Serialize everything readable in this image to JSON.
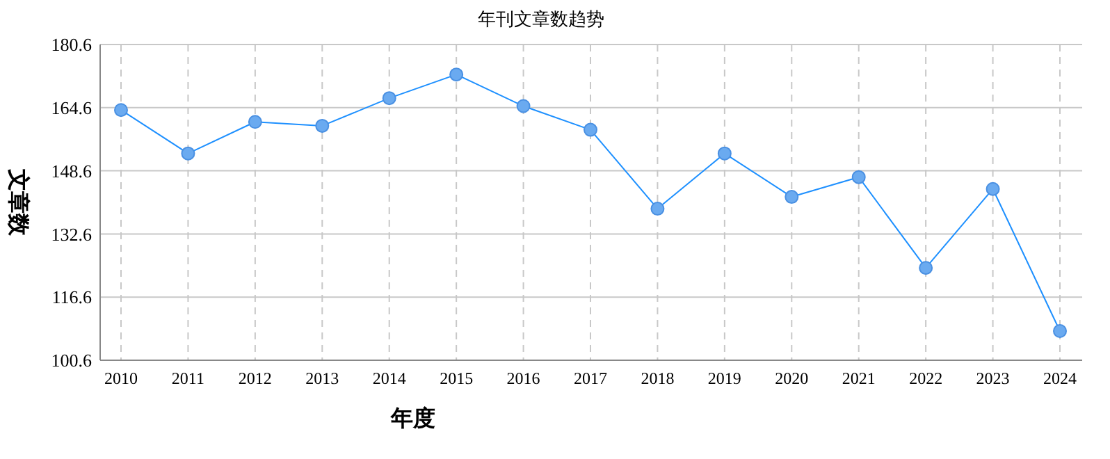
{
  "chart_data": {
    "type": "line",
    "title": "年刊文章数趋势",
    "xlabel": "年度",
    "ylabel": "文章数",
    "categories": [
      "2010",
      "2011",
      "2012",
      "2013",
      "2014",
      "2015",
      "2016",
      "2017",
      "2018",
      "2019",
      "2020",
      "2021",
      "2022",
      "2023",
      "2024"
    ],
    "series": [
      {
        "color": "#1e90ff",
        "values": [
          164,
          153,
          161,
          160,
          167,
          173,
          165,
          159,
          139,
          153,
          142,
          147,
          124,
          144,
          108
        ]
      }
    ],
    "ylim": [
      100.6,
      180.6
    ],
    "yticks": [
      100.6,
      116.6,
      132.6,
      148.6,
      164.6,
      180.6
    ],
    "grid": true,
    "marker": "circle",
    "line_style": "solid"
  }
}
